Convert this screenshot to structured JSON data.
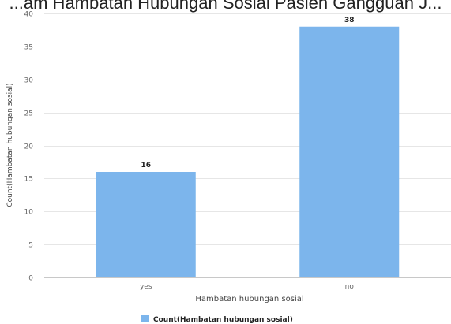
{
  "chart_data": {
    "type": "bar",
    "title": "...am Hambatan Hubungan Sosial Pasien Gangguan J...",
    "xlabel": "Hambatan hubungan sosial",
    "ylabel": "Count(Hambatan hubungan sosial)",
    "categories": [
      "yes",
      "no"
    ],
    "series": [
      {
        "name": "Count(Hambatan hubungan sosial)",
        "values": [
          16,
          38
        ]
      }
    ],
    "ylim": [
      0,
      40
    ],
    "yticks": [
      0,
      5,
      10,
      15,
      20,
      25,
      30,
      35,
      40
    ],
    "grid": true,
    "legend_position": "bottom",
    "bar_color": "#7cb5ec",
    "data_labels": true
  }
}
